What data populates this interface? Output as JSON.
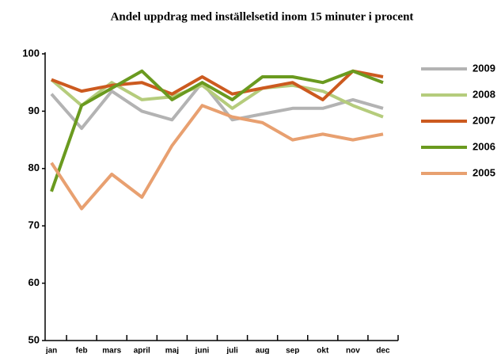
{
  "chart_data": {
    "type": "line",
    "title": "Andel uppdrag med inställelsetid inom 15 minuter i procent",
    "categories": [
      "jan",
      "feb",
      "mars",
      "april",
      "maj",
      "juni",
      "juli",
      "aug",
      "sep",
      "okt",
      "nov",
      "dec"
    ],
    "series": [
      {
        "name": "2009",
        "color": "#b3b3b3",
        "values": [
          93,
          87,
          93.5,
          90,
          88.5,
          95,
          88.5,
          89.5,
          90.5,
          90.5,
          92,
          90.5
        ]
      },
      {
        "name": "2008",
        "color": "#b5cc7c",
        "values": [
          95.5,
          91,
          95,
          92,
          92.5,
          94.5,
          90.5,
          94,
          94.5,
          93.5,
          91,
          89
        ]
      },
      {
        "name": "2007",
        "color": "#cc5a1f",
        "values": [
          95.5,
          93.5,
          94.5,
          95,
          93,
          96,
          93,
          94,
          95,
          92,
          97,
          96
        ]
      },
      {
        "name": "2006",
        "color": "#6a9a1f",
        "values": [
          76,
          91,
          94,
          97,
          92,
          95,
          92,
          96,
          96,
          95,
          97,
          95
        ]
      },
      {
        "name": "2005",
        "color": "#e8a070",
        "values": [
          81,
          73,
          79,
          75,
          84,
          91,
          89,
          88,
          85,
          86,
          85,
          86
        ]
      }
    ],
    "ylim": [
      50,
      100
    ],
    "yticks": [
      50,
      60,
      70,
      80,
      90,
      100
    ],
    "grid": false,
    "legend": "right"
  }
}
